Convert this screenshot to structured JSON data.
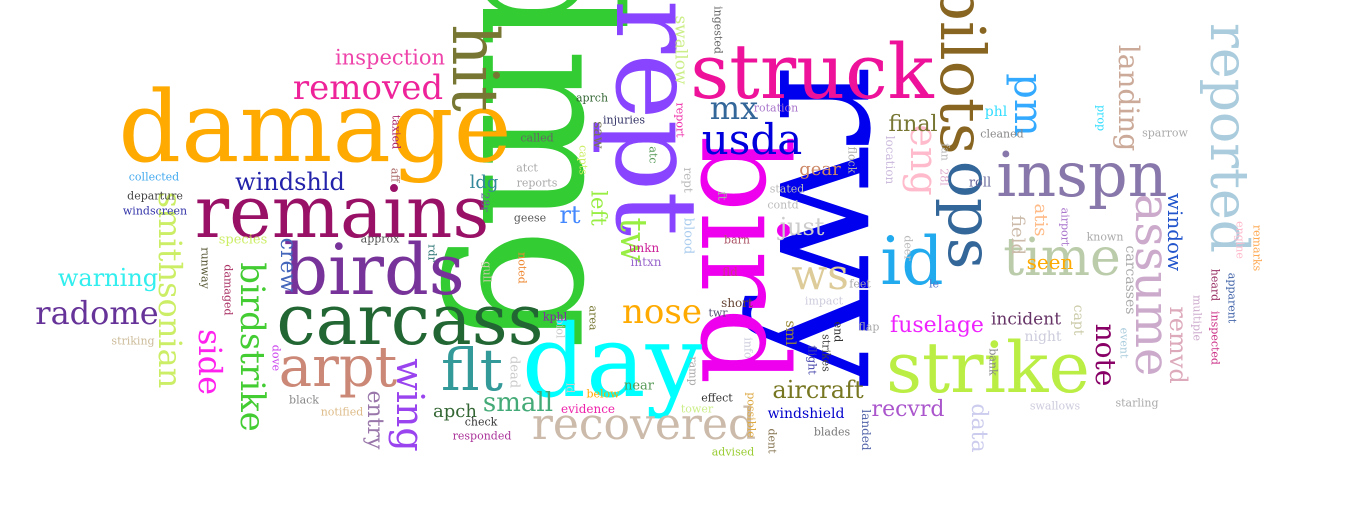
{
  "words": [
    {
      "text": "dmg",
      "color": "#33cc33"
    },
    {
      "text": "rwy",
      "color": "#0000ee"
    },
    {
      "text": "bird",
      "color": "#ee00ee"
    },
    {
      "text": "damage",
      "color": "#ffaa00"
    },
    {
      "text": "rept",
      "color": "#8844ff"
    },
    {
      "text": "struck",
      "color": "#ee1199"
    },
    {
      "text": "remains",
      "color": "#991166"
    },
    {
      "text": "day",
      "color": "#00ffff"
    },
    {
      "text": "carcass",
      "color": "#226633"
    },
    {
      "text": "strike",
      "color": "#bbee44"
    },
    {
      "text": "birds",
      "color": "#773399"
    },
    {
      "text": "pilots",
      "color": "#886622"
    },
    {
      "text": "ops",
      "color": "#336699"
    },
    {
      "text": "hit",
      "color": "#777733"
    },
    {
      "text": "reported",
      "color": "#aaccdd"
    },
    {
      "text": "inspn",
      "color": "#8877aa"
    },
    {
      "text": "id",
      "color": "#22aaee"
    },
    {
      "text": "assume",
      "color": "#ccaacc"
    },
    {
      "text": "time",
      "color": "#bbccaa"
    },
    {
      "text": "flt",
      "color": "#339999"
    },
    {
      "text": "arpt",
      "color": "#cc8877"
    },
    {
      "text": "recovered",
      "color": "#ccbbaa"
    },
    {
      "text": "smithsonian",
      "color": "#ccee66"
    },
    {
      "text": "usda",
      "color": "#0000dd"
    },
    {
      "text": "birdstrike",
      "color": "#44cc33"
    },
    {
      "text": "removed",
      "color": "#ee2299"
    },
    {
      "text": "ws",
      "color": "#ddcc99"
    },
    {
      "text": "eng",
      "color": "#ffbbcc"
    },
    {
      "text": "pm",
      "color": "#33aaff"
    },
    {
      "text": "wing",
      "color": "#9944ee"
    },
    {
      "text": "landing",
      "color": "#ccaa99"
    },
    {
      "text": "nose",
      "color": "#ffaa00"
    },
    {
      "text": "radome",
      "color": "#663399"
    },
    {
      "text": "side",
      "color": "#ff22ee"
    },
    {
      "text": "mx",
      "color": "#336699"
    },
    {
      "text": "final",
      "color": "#777733"
    },
    {
      "text": "aircraft",
      "color": "#777722"
    },
    {
      "text": "remvd",
      "color": "#ddaabb"
    },
    {
      "text": "note",
      "color": "#880066"
    },
    {
      "text": "fuselage",
      "color": "#ee22ff"
    },
    {
      "text": "small",
      "color": "#44aa77"
    },
    {
      "text": "windshld",
      "color": "#2222aa"
    },
    {
      "text": "warning",
      "color": "#33eeee"
    },
    {
      "text": "inspection",
      "color": "#ee44aa"
    },
    {
      "text": "tw",
      "color": "#99ee44"
    },
    {
      "text": "rt",
      "color": "#4488ff"
    },
    {
      "text": "left",
      "color": "#99ee44"
    },
    {
      "text": "just",
      "color": "#cccccc"
    },
    {
      "text": "swallow",
      "color": "#ccee88"
    },
    {
      "text": "recvrd",
      "color": "#aa55cc"
    },
    {
      "text": "incident",
      "color": "#663366"
    },
    {
      "text": "seen",
      "color": "#ffaa00"
    },
    {
      "text": "window",
      "color": "#2255cc"
    },
    {
      "text": "entry",
      "color": "#9977aa"
    },
    {
      "text": "data",
      "color": "#ccccee"
    },
    {
      "text": "crew",
      "color": "#4466bb"
    },
    {
      "text": "apch",
      "color": "#336633"
    },
    {
      "text": "ldg",
      "color": "#338899"
    },
    {
      "text": "gear",
      "color": "#cc8866"
    },
    {
      "text": "field",
      "color": "#ccbbaa"
    },
    {
      "text": "atis",
      "color": "#ffbb88"
    },
    {
      "text": "carcasses",
      "color": "#aaaaaa"
    },
    {
      "text": "capt",
      "color": "#ccccaa"
    },
    {
      "text": "night",
      "color": "#ccccdd"
    },
    {
      "text": "sml",
      "color": "#998833"
    },
    {
      "text": "saw",
      "color": "#777755"
    },
    {
      "text": "flock",
      "color": "#aaaaaa"
    },
    {
      "text": "location",
      "color": "#ccbbdd"
    },
    {
      "text": "roll",
      "color": "#666699"
    },
    {
      "text": "phl",
      "color": "#33ddff"
    },
    {
      "text": "cleaned",
      "color": "#888888"
    },
    {
      "text": "fan",
      "color": "#bbbbbb"
    },
    {
      "text": "28l",
      "color": "#ddaacc"
    },
    {
      "text": "prop",
      "color": "#33ddff"
    },
    {
      "text": "sparrow",
      "color": "#aaaaaa"
    },
    {
      "text": "rept",
      "color": "#bbbbbb"
    },
    {
      "text": "ft",
      "color": "#aaaaaa"
    },
    {
      "text": "stated",
      "color": "#bbbbbb"
    },
    {
      "text": "contd",
      "color": "#bbbbbb"
    },
    {
      "text": "barn",
      "color": "#aa5566"
    },
    {
      "text": "fld",
      "color": "#cc3388"
    },
    {
      "text": "short",
      "color": "#664433"
    },
    {
      "text": "impact",
      "color": "#ccccdd"
    },
    {
      "text": "feet",
      "color": "#aaaaaa"
    },
    {
      "text": "deer",
      "color": "#bbbbbb"
    },
    {
      "text": "le",
      "color": "#5577cc"
    },
    {
      "text": "airport",
      "color": "#aa77cc"
    },
    {
      "text": "known",
      "color": "#aaaaaa"
    },
    {
      "text": "flap",
      "color": "#aaaaaa"
    },
    {
      "text": "end",
      "color": "#333333"
    },
    {
      "text": "strikes",
      "color": "#444444"
    },
    {
      "text": "flight",
      "color": "#4444aa"
    },
    {
      "text": "landed",
      "color": "#5566aa"
    },
    {
      "text": "blades",
      "color": "#777777"
    },
    {
      "text": "windshield",
      "color": "#0000cc"
    },
    {
      "text": "dent",
      "color": "#887755"
    },
    {
      "text": "possible",
      "color": "#ddaa44"
    },
    {
      "text": "advised",
      "color": "#99cc33"
    },
    {
      "text": "tower",
      "color": "#ccee88"
    },
    {
      "text": "effect",
      "color": "#333333"
    },
    {
      "text": "evidence",
      "color": "#ee22aa"
    },
    {
      "text": "below",
      "color": "#ffaa00"
    },
    {
      "text": "near",
      "color": "#559955"
    },
    {
      "text": "ramp",
      "color": "#aaaaaa"
    },
    {
      "text": "info",
      "color": "#ccccdd"
    },
    {
      "text": "bank",
      "color": "#888888"
    },
    {
      "text": "swallows",
      "color": "#ccccdd"
    },
    {
      "text": "starling",
      "color": "#aaaaaa"
    },
    {
      "text": "event",
      "color": "#aaccdd"
    },
    {
      "text": "multiple",
      "color": "#ccaacc"
    },
    {
      "text": "heard",
      "color": "#993366"
    },
    {
      "text": "inspected",
      "color": "#cc3388"
    },
    {
      "text": "apparent",
      "color": "#4466aa"
    },
    {
      "text": "engine",
      "color": "#ffbbcc"
    },
    {
      "text": "remarks",
      "color": "#ffaa55"
    },
    {
      "text": "blood",
      "color": "#aaccee"
    },
    {
      "text": "unkn",
      "color": "#cc2299"
    },
    {
      "text": "intxn",
      "color": "#9966cc"
    },
    {
      "text": "biol",
      "color": "#cccccc"
    },
    {
      "text": "area",
      "color": "#777733"
    },
    {
      "text": "kphl",
      "color": "#8822aa"
    },
    {
      "text": "twr",
      "color": "#555577"
    },
    {
      "text": "dead",
      "color": "#cccccc"
    },
    {
      "text": "noted",
      "color": "#ee8833"
    },
    {
      "text": "gull",
      "color": "#ccccaa"
    },
    {
      "text": "rdr",
      "color": "#337777"
    },
    {
      "text": "geese",
      "color": "#555555"
    },
    {
      "text": "28r",
      "color": "#666699"
    },
    {
      "text": "aprch",
      "color": "#336633"
    },
    {
      "text": "injuries",
      "color": "#333366"
    },
    {
      "text": "report",
      "color": "#ee33aa"
    },
    {
      "text": "rotation",
      "color": "#aa77cc"
    },
    {
      "text": "ingested",
      "color": "#666666"
    },
    {
      "text": "called",
      "color": "#666666"
    },
    {
      "text": "atct",
      "color": "#aaaaaa"
    },
    {
      "text": "reports",
      "color": "#aaaaaa"
    },
    {
      "text": "capts",
      "color": "#ccee66"
    },
    {
      "text": "atc",
      "color": "#559955"
    },
    {
      "text": "collected",
      "color": "#44aaee"
    },
    {
      "text": "windscreen",
      "color": "#3333aa"
    },
    {
      "text": "departure",
      "color": "#444444"
    },
    {
      "text": "aff",
      "color": "#aa6666"
    },
    {
      "text": "taxied",
      "color": "#aa2266"
    },
    {
      "text": "species",
      "color": "#ccee66"
    },
    {
      "text": "approx",
      "color": "#555555"
    },
    {
      "text": "runway",
      "color": "#555533"
    },
    {
      "text": "damaged",
      "color": "#aa3366"
    },
    {
      "text": "dove",
      "color": "#cc44ee"
    },
    {
      "text": "black",
      "color": "#888888"
    },
    {
      "text": "notified",
      "color": "#ddbb88"
    },
    {
      "text": "check",
      "color": "#333333"
    },
    {
      "text": "responded",
      "color": "#aa3399"
    },
    {
      "text": "striking",
      "color": "#ccbb99"
    },
    {
      "text": "ld",
      "color": "#cccccc"
    }
  ]
}
